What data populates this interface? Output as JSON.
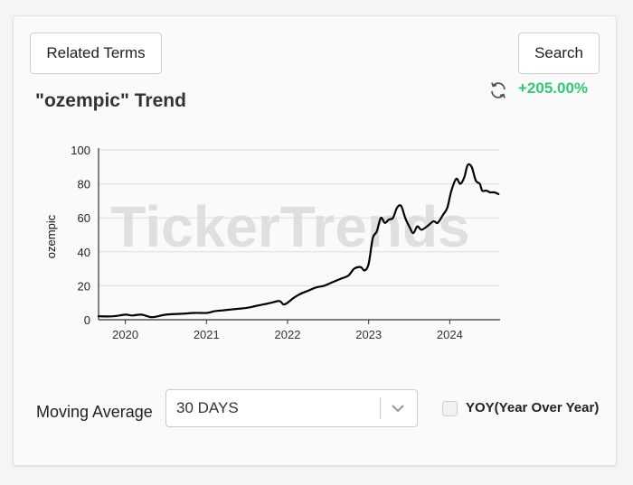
{
  "buttons": {
    "related_terms": "Related Terms",
    "search": "Search"
  },
  "header": {
    "title": "\"ozempic\" Trend",
    "change": "+205.00%",
    "change_color": "#2ecc71",
    "refresh_icon": "refresh-icon"
  },
  "watermark": "TickerTrends",
  "controls": {
    "moving_average_label": "Moving Average",
    "moving_average_value": "30 DAYS",
    "yoy_label": "YOY(Year Over Year)",
    "yoy_checked": false
  },
  "chart_data": {
    "type": "line",
    "title": "",
    "xlabel": "",
    "ylabel": "ozempic",
    "xlim": [
      2019.67,
      2024.62
    ],
    "ylim": [
      0,
      100
    ],
    "x_ticks": [
      "2020",
      "2021",
      "2022",
      "2023",
      "2024"
    ],
    "y_ticks": [
      "0",
      "20",
      "40",
      "60",
      "80",
      "100"
    ],
    "grid": true,
    "line_color": "#000000",
    "series": [
      {
        "name": "",
        "x": [
          2019.67,
          2019.85,
          2020.0,
          2020.08,
          2020.2,
          2020.33,
          2020.5,
          2020.7,
          2020.85,
          2021.0,
          2021.1,
          2021.2,
          2021.3,
          2021.4,
          2021.5,
          2021.6,
          2021.7,
          2021.8,
          2021.9,
          2021.95,
          2022.0,
          2022.08,
          2022.15,
          2022.25,
          2022.35,
          2022.45,
          2022.55,
          2022.65,
          2022.75,
          2022.82,
          2022.9,
          2022.95,
          2023.0,
          2023.05,
          2023.1,
          2023.15,
          2023.2,
          2023.25,
          2023.3,
          2023.35,
          2023.4,
          2023.45,
          2023.5,
          2023.55,
          2023.6,
          2023.65,
          2023.72,
          2023.8,
          2023.85,
          2023.92,
          2023.97,
          2024.02,
          2024.08,
          2024.13,
          2024.18,
          2024.22,
          2024.27,
          2024.32,
          2024.37,
          2024.4,
          2024.45,
          2024.5,
          2024.55,
          2024.6
        ],
        "y": [
          2,
          2,
          3,
          2.5,
          3,
          1.5,
          3,
          3.5,
          4,
          4,
          5,
          5.5,
          6,
          6.5,
          7,
          8,
          9,
          10,
          11,
          9,
          10,
          13,
          15,
          17,
          19,
          20,
          22,
          24,
          26,
          30,
          31,
          29,
          33,
          48,
          52,
          60,
          57,
          59,
          60,
          66,
          67,
          60,
          55,
          51,
          55,
          53,
          55,
          58,
          57,
          62,
          66,
          76,
          83,
          80,
          84,
          91,
          90,
          82,
          80,
          76,
          76,
          75,
          75,
          74
        ]
      }
    ]
  }
}
